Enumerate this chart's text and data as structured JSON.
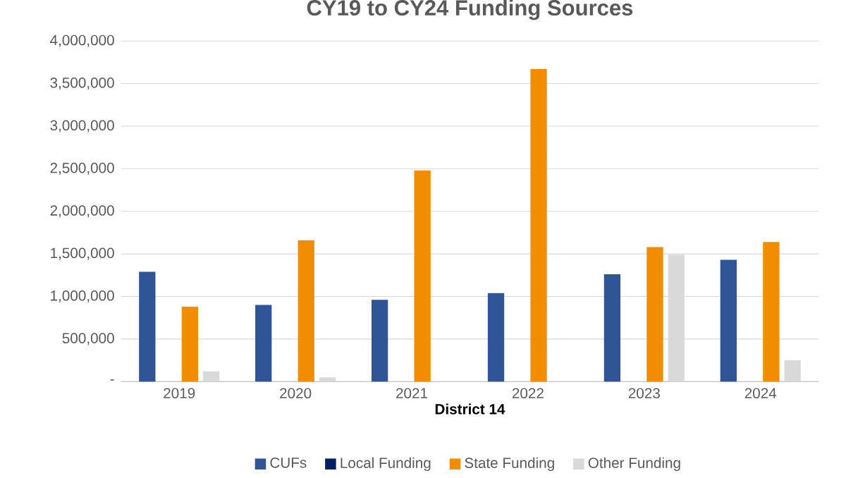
{
  "chart_data": {
    "type": "bar",
    "title": "CY19 to CY24 Funding Sources",
    "xlabel": "District 14",
    "categories": [
      "2019",
      "2020",
      "2021",
      "2022",
      "2023",
      "2024"
    ],
    "series": [
      {
        "name": "CUFs",
        "color": "#2f5597",
        "values": [
          1290000,
          900000,
          960000,
          1040000,
          1260000,
          1430000
        ]
      },
      {
        "name": "Local Funding",
        "color": "#002060",
        "values": [
          0,
          0,
          0,
          0,
          0,
          0
        ]
      },
      {
        "name": "State Funding",
        "color": "#f28c00",
        "values": [
          880000,
          1660000,
          2480000,
          3670000,
          1580000,
          1640000
        ]
      },
      {
        "name": "Other Funding",
        "color": "#d9d9d9",
        "values": [
          120000,
          50000,
          null,
          null,
          1490000,
          250000
        ]
      }
    ],
    "ylim": [
      0,
      4000000
    ],
    "yticks": [
      {
        "value": 0,
        "label": "-"
      },
      {
        "value": 500000,
        "label": "500,000"
      },
      {
        "value": 1000000,
        "label": "1,000,000"
      },
      {
        "value": 1500000,
        "label": "1,500,000"
      },
      {
        "value": 2000000,
        "label": "2,000,000"
      },
      {
        "value": 2500000,
        "label": "2,500,000"
      },
      {
        "value": 3000000,
        "label": "3,000,000"
      },
      {
        "value": 3500000,
        "label": "3,500,000"
      },
      {
        "value": 4000000,
        "label": "4,000,000"
      }
    ],
    "grid": "y",
    "legend": "bottom"
  }
}
